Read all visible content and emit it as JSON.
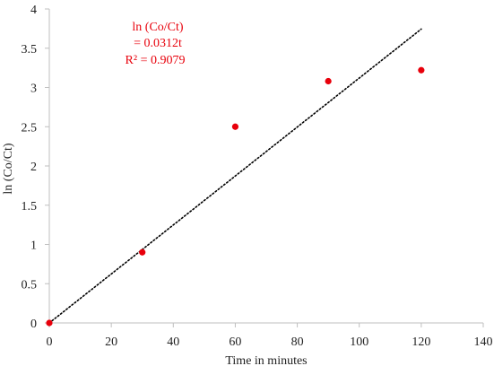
{
  "chart_data": {
    "type": "scatter",
    "title": "",
    "xlabel": "Time  in  minutes",
    "ylabel": "ln (Co/Ct)",
    "xlim": [
      0,
      140
    ],
    "ylim": [
      0,
      4
    ],
    "x_ticks": [
      0,
      20,
      40,
      60,
      80,
      100,
      120,
      140
    ],
    "y_ticks": [
      0,
      0.5,
      1,
      1.5,
      2,
      2.5,
      3,
      3.5,
      4
    ],
    "y_tick_labels": [
      "0",
      "0.5",
      "1",
      "1.5",
      "2",
      "2.5",
      "3",
      "3.5",
      "4"
    ],
    "grid": false,
    "series": [
      {
        "x": [
          0,
          30,
          60,
          90,
          120
        ],
        "y": [
          0,
          0.9,
          2.5,
          3.08,
          3.22
        ]
      }
    ],
    "trendline": {
      "type": "linear",
      "style": "dotted",
      "slope": 0.0312,
      "intercept": 0,
      "x_range": [
        0,
        120
      ]
    },
    "annotation": {
      "lines": [
        "ln (Co/Ct)",
        "= 0.0312t",
        "R² = 0.9079"
      ]
    },
    "colors": {
      "marker": "#e8000b",
      "annotation": "#e8000b",
      "trendline": "#000000",
      "axis": "#bfbfbf"
    }
  }
}
